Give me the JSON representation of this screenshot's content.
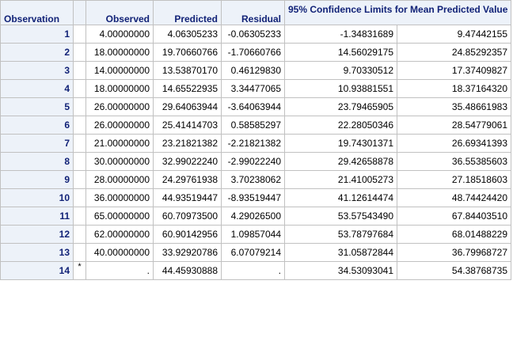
{
  "table": {
    "headers": {
      "observation": "Observation",
      "observed": "Observed",
      "predicted": "Predicted",
      "residual": "Residual",
      "ci": "95% Confidence Limits for Mean Predicted Value"
    },
    "rows": [
      {
        "obs": "1",
        "flag": "",
        "observed": "4.00000000",
        "predicted": "4.06305233",
        "residual": "-0.06305233",
        "lower": "-1.34831689",
        "upper": "9.47442155"
      },
      {
        "obs": "2",
        "flag": "",
        "observed": "18.00000000",
        "predicted": "19.70660766",
        "residual": "-1.70660766",
        "lower": "14.56029175",
        "upper": "24.85292357"
      },
      {
        "obs": "3",
        "flag": "",
        "observed": "14.00000000",
        "predicted": "13.53870170",
        "residual": "0.46129830",
        "lower": "9.70330512",
        "upper": "17.37409827"
      },
      {
        "obs": "4",
        "flag": "",
        "observed": "18.00000000",
        "predicted": "14.65522935",
        "residual": "3.34477065",
        "lower": "10.93881551",
        "upper": "18.37164320"
      },
      {
        "obs": "5",
        "flag": "",
        "observed": "26.00000000",
        "predicted": "29.64063944",
        "residual": "-3.64063944",
        "lower": "23.79465905",
        "upper": "35.48661983"
      },
      {
        "obs": "6",
        "flag": "",
        "observed": "26.00000000",
        "predicted": "25.41414703",
        "residual": "0.58585297",
        "lower": "22.28050346",
        "upper": "28.54779061"
      },
      {
        "obs": "7",
        "flag": "",
        "observed": "21.00000000",
        "predicted": "23.21821382",
        "residual": "-2.21821382",
        "lower": "19.74301371",
        "upper": "26.69341393"
      },
      {
        "obs": "8",
        "flag": "",
        "observed": "30.00000000",
        "predicted": "32.99022240",
        "residual": "-2.99022240",
        "lower": "29.42658878",
        "upper": "36.55385603"
      },
      {
        "obs": "9",
        "flag": "",
        "observed": "28.00000000",
        "predicted": "24.29761938",
        "residual": "3.70238062",
        "lower": "21.41005273",
        "upper": "27.18518603"
      },
      {
        "obs": "10",
        "flag": "",
        "observed": "36.00000000",
        "predicted": "44.93519447",
        "residual": "-8.93519447",
        "lower": "41.12614474",
        "upper": "48.74424420"
      },
      {
        "obs": "11",
        "flag": "",
        "observed": "65.00000000",
        "predicted": "60.70973500",
        "residual": "4.29026500",
        "lower": "53.57543490",
        "upper": "67.84403510"
      },
      {
        "obs": "12",
        "flag": "",
        "observed": "62.00000000",
        "predicted": "60.90142956",
        "residual": "1.09857044",
        "lower": "53.78797684",
        "upper": "68.01488229"
      },
      {
        "obs": "13",
        "flag": "",
        "observed": "40.00000000",
        "predicted": "33.92920786",
        "residual": "6.07079214",
        "lower": "31.05872844",
        "upper": "36.79968727"
      },
      {
        "obs": "14",
        "flag": "*",
        "observed": ".",
        "predicted": "44.45930888",
        "residual": ".",
        "lower": "34.53093041",
        "upper": "54.38768735"
      }
    ]
  },
  "colors": {
    "header_bg": "#edf2f9",
    "header_text": "#112277",
    "border": "#c1c1c1"
  }
}
